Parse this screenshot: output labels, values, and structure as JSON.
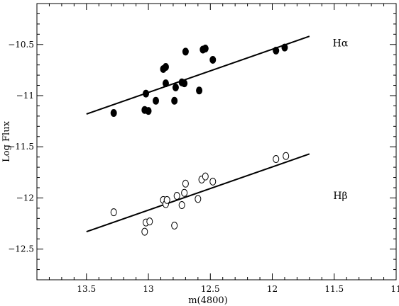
{
  "chart_data": {
    "type": "scatter",
    "title": "",
    "xlabel": "m(4800)",
    "ylabel": "Log Flux",
    "xlim": [
      13.9,
      11.0
    ],
    "ylim": [
      -12.8,
      -10.1
    ],
    "x_ticks": [
      13.5,
      13,
      12.5,
      12,
      11.5,
      11
    ],
    "x_tick_labels": [
      "13.5",
      "13",
      "12.5",
      "12",
      "11.5",
      "11"
    ],
    "y_ticks": [
      -10.5,
      -11,
      -11.5,
      -12,
      -12.5
    ],
    "y_tick_labels": [
      "−10.5",
      "−11",
      "−11.5",
      "−12",
      "−12.5"
    ],
    "x_axis_reversed": true,
    "grid": false,
    "series": [
      {
        "name": "Hα",
        "marker": "filled-circle",
        "points": [
          [
            13.28,
            -11.17
          ],
          [
            13.02,
            -10.98
          ],
          [
            13.03,
            -11.14
          ],
          [
            13.0,
            -11.15
          ],
          [
            12.94,
            -11.05
          ],
          [
            12.88,
            -10.74
          ],
          [
            12.86,
            -10.72
          ],
          [
            12.86,
            -10.88
          ],
          [
            12.79,
            -11.05
          ],
          [
            12.78,
            -10.92
          ],
          [
            12.73,
            -10.87
          ],
          [
            12.71,
            -10.88
          ],
          [
            12.7,
            -10.57
          ],
          [
            12.59,
            -10.95
          ],
          [
            12.56,
            -10.55
          ],
          [
            12.54,
            -10.54
          ],
          [
            12.48,
            -10.65
          ],
          [
            11.97,
            -10.56
          ],
          [
            11.9,
            -10.53
          ]
        ]
      },
      {
        "name": "Hβ",
        "marker": "open-circle",
        "points": [
          [
            13.28,
            -12.14
          ],
          [
            13.03,
            -12.33
          ],
          [
            13.02,
            -12.24
          ],
          [
            12.99,
            -12.23
          ],
          [
            12.88,
            -12.02
          ],
          [
            12.86,
            -12.06
          ],
          [
            12.85,
            -12.02
          ],
          [
            12.79,
            -12.27
          ],
          [
            12.77,
            -11.98
          ],
          [
            12.73,
            -12.07
          ],
          [
            12.71,
            -11.95
          ],
          [
            12.7,
            -11.86
          ],
          [
            12.6,
            -12.01
          ],
          [
            12.57,
            -11.82
          ],
          [
            12.54,
            -11.79
          ],
          [
            12.48,
            -11.84
          ],
          [
            11.97,
            -11.62
          ],
          [
            11.89,
            -11.59
          ]
        ]
      }
    ],
    "fit_lines": [
      {
        "x": [
          13.5,
          11.7
        ],
        "y": [
          -11.18,
          -10.42
        ]
      },
      {
        "x": [
          13.5,
          11.7
        ],
        "y": [
          -12.33,
          -11.57
        ]
      }
    ],
    "annotations": [
      {
        "text": "Hα",
        "x": 11.45,
        "y": -10.52
      },
      {
        "text": "Hβ",
        "x": 11.45,
        "y": -12.01
      }
    ]
  }
}
